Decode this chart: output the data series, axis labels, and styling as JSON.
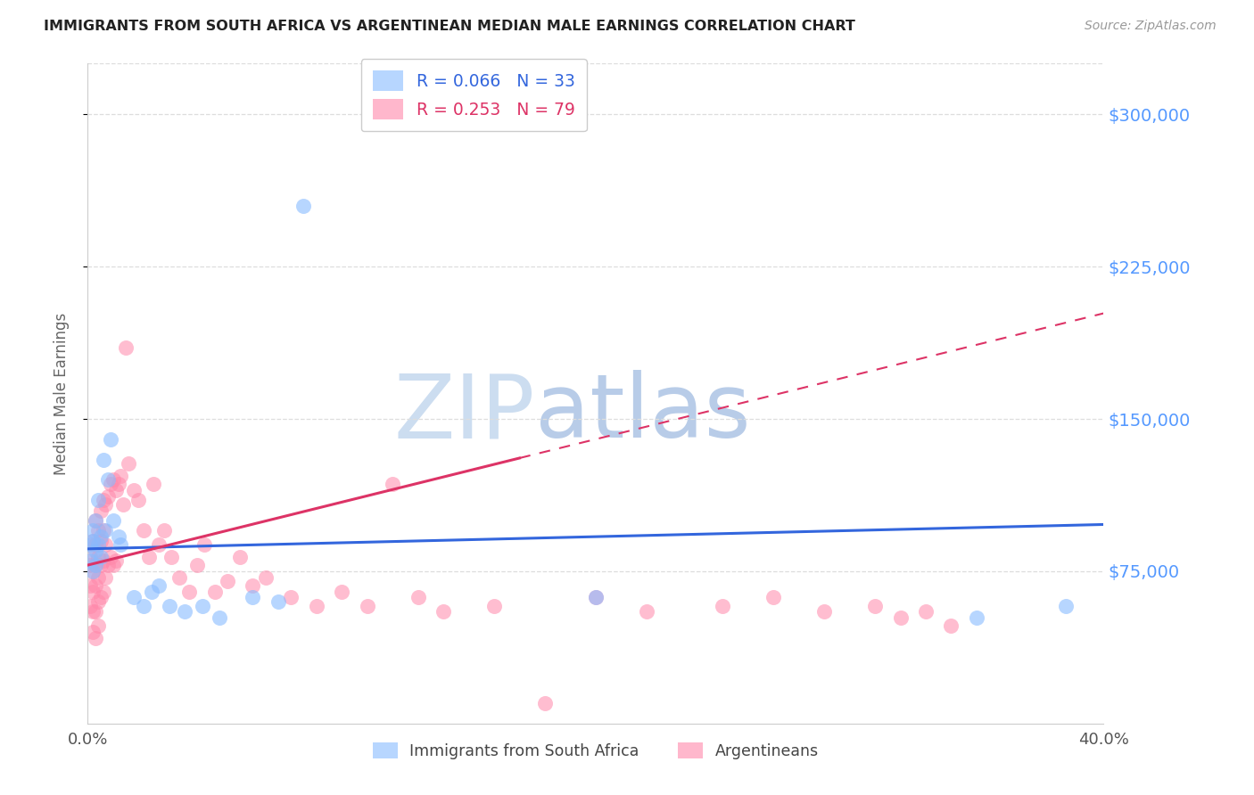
{
  "title": "IMMIGRANTS FROM SOUTH AFRICA VS ARGENTINEAN MEDIAN MALE EARNINGS CORRELATION CHART",
  "source": "Source: ZipAtlas.com",
  "ylabel": "Median Male Earnings",
  "xlim": [
    0.0,
    0.4
  ],
  "ylim": [
    0,
    325000
  ],
  "yticks": [
    75000,
    150000,
    225000,
    300000
  ],
  "ytick_labels": [
    "$75,000",
    "$150,000",
    "$225,000",
    "$300,000"
  ],
  "xtick_positions": [
    0.0,
    0.08,
    0.16,
    0.24,
    0.32,
    0.4
  ],
  "xtick_labels": [
    "0.0%",
    "",
    "",
    "",
    "",
    "40.0%"
  ],
  "legend_label1": "Immigrants from South Africa",
  "legend_label2": "Argentineans",
  "legend_text1": "R = 0.066   N = 33",
  "legend_text2": "R = 0.253   N = 79",
  "blue_color": "#88bbff",
  "pink_color": "#ff88aa",
  "blue_line_color": "#3366dd",
  "pink_line_color": "#dd3366",
  "blue_N": 33,
  "pink_N": 79,
  "blue_R": 0.066,
  "pink_R": 0.253,
  "watermark_color": "#d8e8f5",
  "grid_color": "#dddddd",
  "title_color": "#222222",
  "axis_label_color": "#666666",
  "right_tick_color": "#5599ff",
  "source_color": "#999999",
  "blue_x": [
    0.001,
    0.001,
    0.002,
    0.002,
    0.002,
    0.003,
    0.003,
    0.003,
    0.004,
    0.004,
    0.005,
    0.005,
    0.006,
    0.007,
    0.008,
    0.009,
    0.01,
    0.012,
    0.013,
    0.018,
    0.022,
    0.025,
    0.028,
    0.032,
    0.038,
    0.045,
    0.052,
    0.065,
    0.075,
    0.085,
    0.2,
    0.35,
    0.385
  ],
  "blue_y": [
    88000,
    80000,
    95000,
    75000,
    90000,
    85000,
    100000,
    78000,
    110000,
    88000,
    92000,
    82000,
    130000,
    95000,
    120000,
    140000,
    100000,
    92000,
    88000,
    62000,
    58000,
    65000,
    68000,
    58000,
    55000,
    58000,
    52000,
    62000,
    60000,
    255000,
    62000,
    52000,
    58000
  ],
  "pink_x": [
    0.001,
    0.001,
    0.001,
    0.001,
    0.002,
    0.002,
    0.002,
    0.002,
    0.002,
    0.003,
    0.003,
    0.003,
    0.003,
    0.003,
    0.003,
    0.004,
    0.004,
    0.004,
    0.004,
    0.004,
    0.005,
    0.005,
    0.005,
    0.005,
    0.006,
    0.006,
    0.006,
    0.006,
    0.007,
    0.007,
    0.007,
    0.008,
    0.008,
    0.009,
    0.009,
    0.01,
    0.01,
    0.011,
    0.011,
    0.012,
    0.013,
    0.014,
    0.015,
    0.016,
    0.018,
    0.02,
    0.022,
    0.024,
    0.026,
    0.028,
    0.03,
    0.033,
    0.036,
    0.04,
    0.043,
    0.046,
    0.05,
    0.055,
    0.06,
    0.065,
    0.07,
    0.08,
    0.09,
    0.1,
    0.11,
    0.12,
    0.13,
    0.14,
    0.16,
    0.18,
    0.2,
    0.22,
    0.25,
    0.27,
    0.29,
    0.31,
    0.32,
    0.33,
    0.34
  ],
  "pink_y": [
    82000,
    78000,
    68000,
    58000,
    90000,
    75000,
    65000,
    55000,
    45000,
    100000,
    88000,
    78000,
    68000,
    55000,
    42000,
    95000,
    82000,
    72000,
    60000,
    48000,
    105000,
    90000,
    78000,
    62000,
    110000,
    95000,
    80000,
    65000,
    108000,
    88000,
    72000,
    112000,
    78000,
    118000,
    82000,
    120000,
    78000,
    115000,
    80000,
    118000,
    122000,
    108000,
    185000,
    128000,
    115000,
    110000,
    95000,
    82000,
    118000,
    88000,
    95000,
    82000,
    72000,
    65000,
    78000,
    88000,
    65000,
    70000,
    82000,
    68000,
    72000,
    62000,
    58000,
    65000,
    58000,
    118000,
    62000,
    55000,
    58000,
    10000,
    62000,
    55000,
    58000,
    62000,
    55000,
    58000,
    52000,
    55000,
    48000
  ]
}
